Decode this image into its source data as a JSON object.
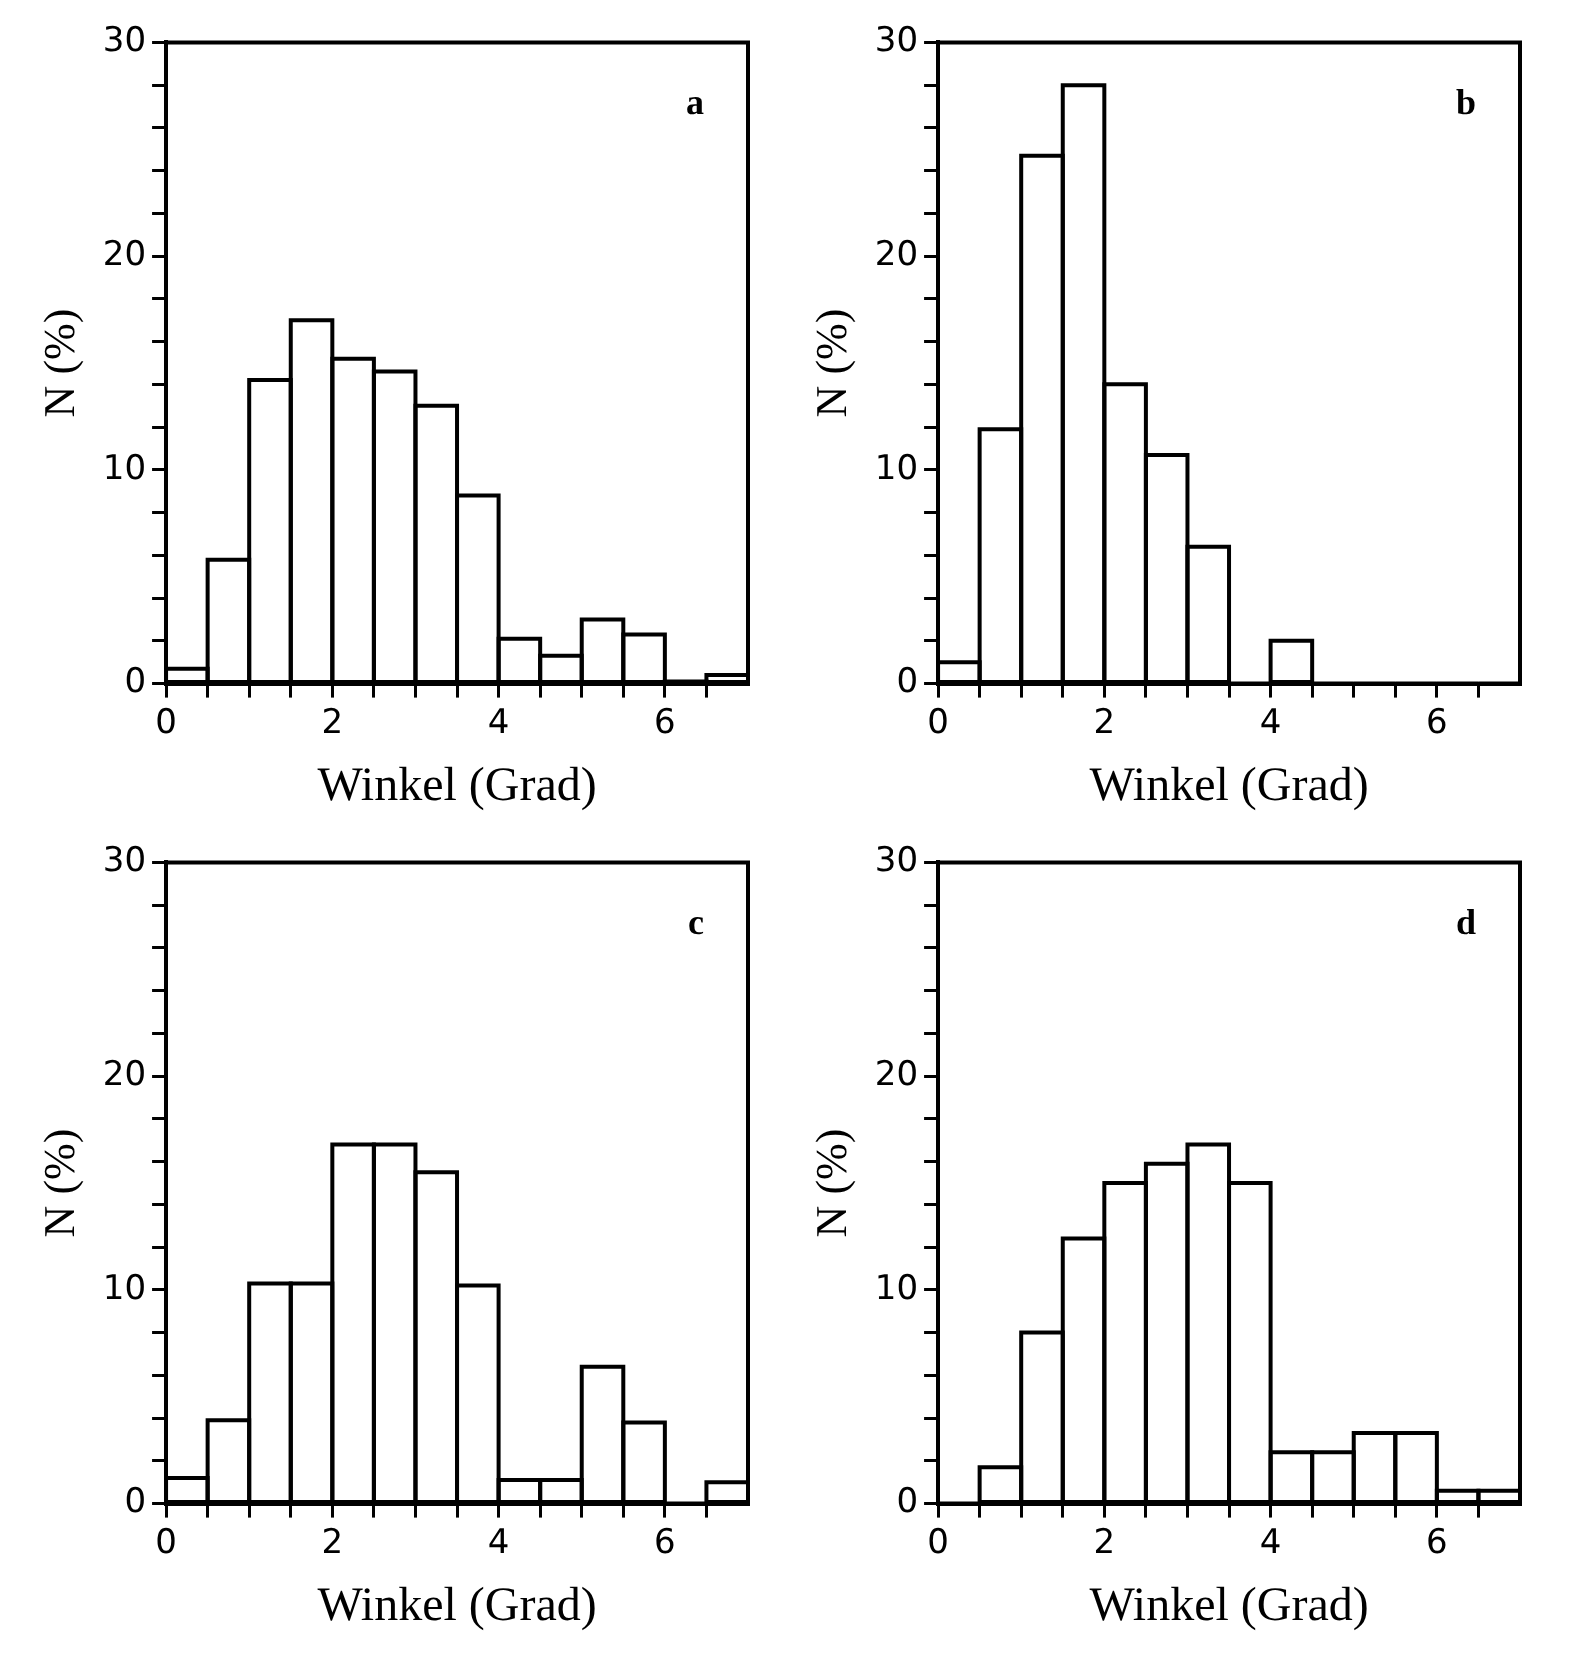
{
  "chart_data": [
    {
      "type": "histogram",
      "annotations": [
        "a"
      ],
      "xlabel": "Winkel (Grad)",
      "ylabel": "N (%)",
      "color": "#000000",
      "bins": [
        0,
        0.5,
        1,
        1.5,
        2,
        2.5,
        3,
        3.5,
        4,
        4.5,
        5,
        5.5,
        6,
        6.5,
        7
      ],
      "values": [
        0.7,
        5.8,
        14.2,
        17.0,
        15.2,
        14.6,
        13.0,
        8.8,
        2.1,
        1.3,
        3.0,
        2.3,
        0.1,
        0.4
      ],
      "xlim": [
        0,
        7
      ],
      "xticks": [
        0,
        {
          "value": 0.5,
          "label": null
        },
        {
          "value": 1,
          "label": null
        },
        {
          "value": 1.5,
          "label": null
        },
        2,
        {
          "value": 2.5,
          "label": null
        },
        {
          "value": 3,
          "label": null
        },
        {
          "value": 3.5,
          "label": null
        },
        4,
        {
          "value": 4.5,
          "label": null
        },
        {
          "value": 5,
          "label": null
        },
        {
          "value": 5.5,
          "label": null
        },
        6,
        {
          "value": 6.5,
          "label": null
        }
      ],
      "ylim": [
        0,
        30
      ],
      "yticks": [
        0,
        {
          "value": 2,
          "label": null
        },
        {
          "value": 4,
          "label": null
        },
        {
          "value": 6,
          "label": null
        },
        {
          "value": 8,
          "label": null
        },
        10,
        {
          "value": 12,
          "label": null
        },
        {
          "value": 14,
          "label": null
        },
        {
          "value": 16,
          "label": null
        },
        {
          "value": 18,
          "label": null
        },
        20,
        {
          "value": 22,
          "label": null
        },
        {
          "value": 24,
          "label": null
        },
        {
          "value": 26,
          "label": null
        },
        {
          "value": 28,
          "label": null
        },
        30
      ]
    },
    {
      "type": "histogram",
      "annotations": [
        "b"
      ],
      "xlabel": "Winkel (Grad)",
      "ylabel": "N (%)",
      "color": "#000000",
      "bins": [
        0,
        0.5,
        1,
        1.5,
        2,
        2.5,
        3,
        3.5,
        4,
        4.5,
        5,
        5.5,
        6,
        6.5,
        7
      ],
      "values": [
        1.0,
        11.9,
        24.7,
        28.0,
        14.0,
        10.7,
        6.4,
        0,
        2.0,
        0,
        0,
        0,
        0,
        0
      ],
      "xlim": [
        0,
        7
      ],
      "xticks": [
        0,
        {
          "value": 0.5,
          "label": null
        },
        {
          "value": 1,
          "label": null
        },
        {
          "value": 1.5,
          "label": null
        },
        2,
        {
          "value": 2.5,
          "label": null
        },
        {
          "value": 3,
          "label": null
        },
        {
          "value": 3.5,
          "label": null
        },
        4,
        {
          "value": 4.5,
          "label": null
        },
        {
          "value": 5,
          "label": null
        },
        {
          "value": 5.5,
          "label": null
        },
        6,
        {
          "value": 6.5,
          "label": null
        }
      ],
      "ylim": [
        0,
        30
      ],
      "yticks": [
        0,
        {
          "value": 2,
          "label": null
        },
        {
          "value": 4,
          "label": null
        },
        {
          "value": 6,
          "label": null
        },
        {
          "value": 8,
          "label": null
        },
        10,
        {
          "value": 12,
          "label": null
        },
        {
          "value": 14,
          "label": null
        },
        {
          "value": 16,
          "label": null
        },
        {
          "value": 18,
          "label": null
        },
        20,
        {
          "value": 22,
          "label": null
        },
        {
          "value": 24,
          "label": null
        },
        {
          "value": 26,
          "label": null
        },
        {
          "value": 28,
          "label": null
        },
        30
      ]
    },
    {
      "type": "histogram",
      "annotations": [
        "c"
      ],
      "xlabel": "Winkel (Grad)",
      "ylabel": "N (%)",
      "color": "#000000",
      "bins": [
        0,
        0.5,
        1,
        1.5,
        2,
        2.5,
        3,
        3.5,
        4,
        4.5,
        5,
        5.5,
        6,
        6.5,
        7
      ],
      "values": [
        1.2,
        3.9,
        10.3,
        10.3,
        16.8,
        16.8,
        15.5,
        10.2,
        1.1,
        1.1,
        6.4,
        3.8,
        0,
        1.0
      ],
      "xlim": [
        0,
        7
      ],
      "xticks": [
        0,
        {
          "value": 0.5,
          "label": null
        },
        {
          "value": 1,
          "label": null
        },
        {
          "value": 1.5,
          "label": null
        },
        2,
        {
          "value": 2.5,
          "label": null
        },
        {
          "value": 3,
          "label": null
        },
        {
          "value": 3.5,
          "label": null
        },
        4,
        {
          "value": 4.5,
          "label": null
        },
        {
          "value": 5,
          "label": null
        },
        {
          "value": 5.5,
          "label": null
        },
        6,
        {
          "value": 6.5,
          "label": null
        }
      ],
      "ylim": [
        0,
        30
      ],
      "yticks": [
        0,
        {
          "value": 2,
          "label": null
        },
        {
          "value": 4,
          "label": null
        },
        {
          "value": 6,
          "label": null
        },
        {
          "value": 8,
          "label": null
        },
        10,
        {
          "value": 12,
          "label": null
        },
        {
          "value": 14,
          "label": null
        },
        {
          "value": 16,
          "label": null
        },
        {
          "value": 18,
          "label": null
        },
        20,
        {
          "value": 22,
          "label": null
        },
        {
          "value": 24,
          "label": null
        },
        {
          "value": 26,
          "label": null
        },
        {
          "value": 28,
          "label": null
        },
        30
      ]
    },
    {
      "type": "histogram",
      "annotations": [
        "d"
      ],
      "xlabel": "Winkel (Grad)",
      "ylabel": "N (%)",
      "color": "#000000",
      "bins": [
        0,
        0.5,
        1,
        1.5,
        2,
        2.5,
        3,
        3.5,
        4,
        4.5,
        5,
        5.5,
        6,
        6.5,
        7
      ],
      "values": [
        0,
        1.7,
        8.0,
        12.4,
        15.0,
        15.9,
        16.8,
        15.0,
        2.4,
        2.4,
        3.3,
        3.3,
        0.6,
        0.6
      ],
      "xlim": [
        0,
        7
      ],
      "xticks": [
        0,
        {
          "value": 0.5,
          "label": null
        },
        {
          "value": 1,
          "label": null
        },
        {
          "value": 1.5,
          "label": null
        },
        2,
        {
          "value": 2.5,
          "label": null
        },
        {
          "value": 3,
          "label": null
        },
        {
          "value": 3.5,
          "label": null
        },
        4,
        {
          "value": 4.5,
          "label": null
        },
        {
          "value": 5,
          "label": null
        },
        {
          "value": 5.5,
          "label": null
        },
        6,
        {
          "value": 6.5,
          "label": null
        }
      ],
      "ylim": [
        0,
        30
      ],
      "yticks": [
        0,
        {
          "value": 2,
          "label": null
        },
        {
          "value": 4,
          "label": null
        },
        {
          "value": 6,
          "label": null
        },
        {
          "value": 8,
          "label": null
        },
        10,
        {
          "value": 12,
          "label": null
        },
        {
          "value": 14,
          "label": null
        },
        {
          "value": 16,
          "label": null
        },
        {
          "value": 18,
          "label": null
        },
        20,
        {
          "value": 22,
          "label": null
        },
        {
          "value": 24,
          "label": null
        },
        {
          "value": 26,
          "label": null
        },
        {
          "value": 28,
          "label": null
        },
        30
      ]
    }
  ]
}
